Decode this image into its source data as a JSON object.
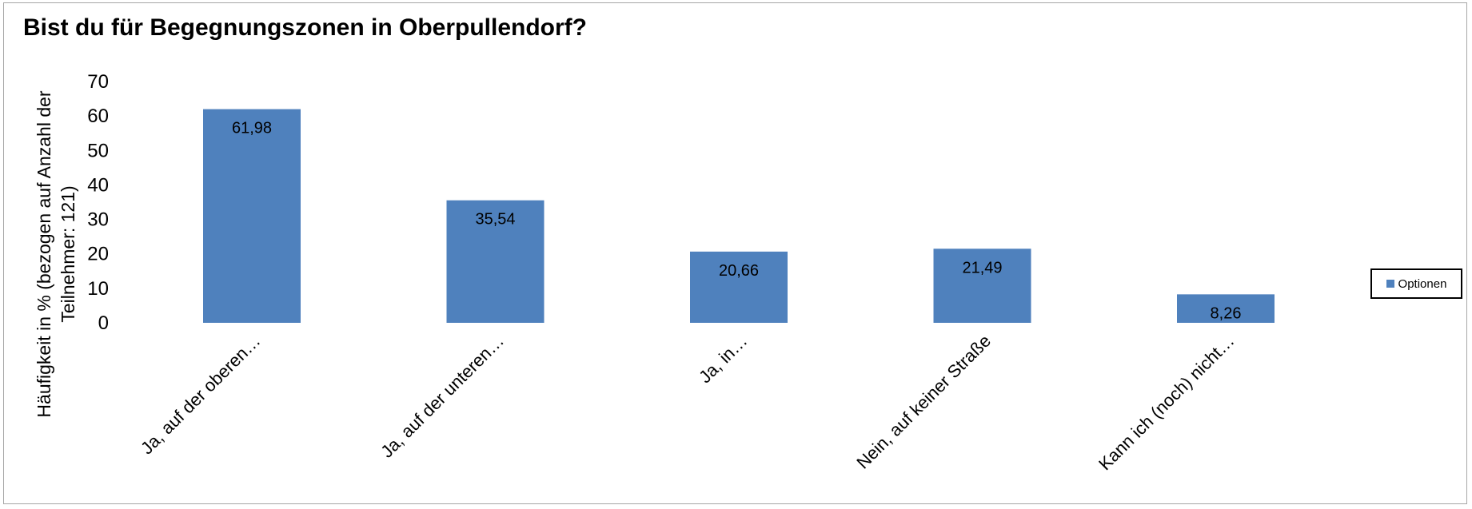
{
  "chart_data": {
    "type": "bar",
    "title": "Bist du für Begegnungszonen in Oberpullendorf?",
    "ylabel_lines": [
      "Häufigkeit in % (bezogen auf Anzahl der",
      "Teilnehmer: 121)"
    ],
    "xlabel": "",
    "categories": [
      "Ja, auf der oberen…",
      "Ja, auf der unteren…",
      "Ja, in…",
      "Nein, auf keiner Straße",
      "Kann ich (noch) nicht…"
    ],
    "series": [
      {
        "name": "Optionen",
        "values": [
          61.98,
          35.54,
          20.66,
          21.49,
          8.26
        ],
        "data_labels": [
          "61,98",
          "35,54",
          "20,66",
          "21,49",
          "8,26"
        ],
        "color": "#4f81bd"
      }
    ],
    "ylim": [
      0,
      70
    ],
    "yticks": [
      0,
      10,
      20,
      30,
      40,
      50,
      60,
      70
    ],
    "grid": false,
    "legend_position": "right"
  }
}
